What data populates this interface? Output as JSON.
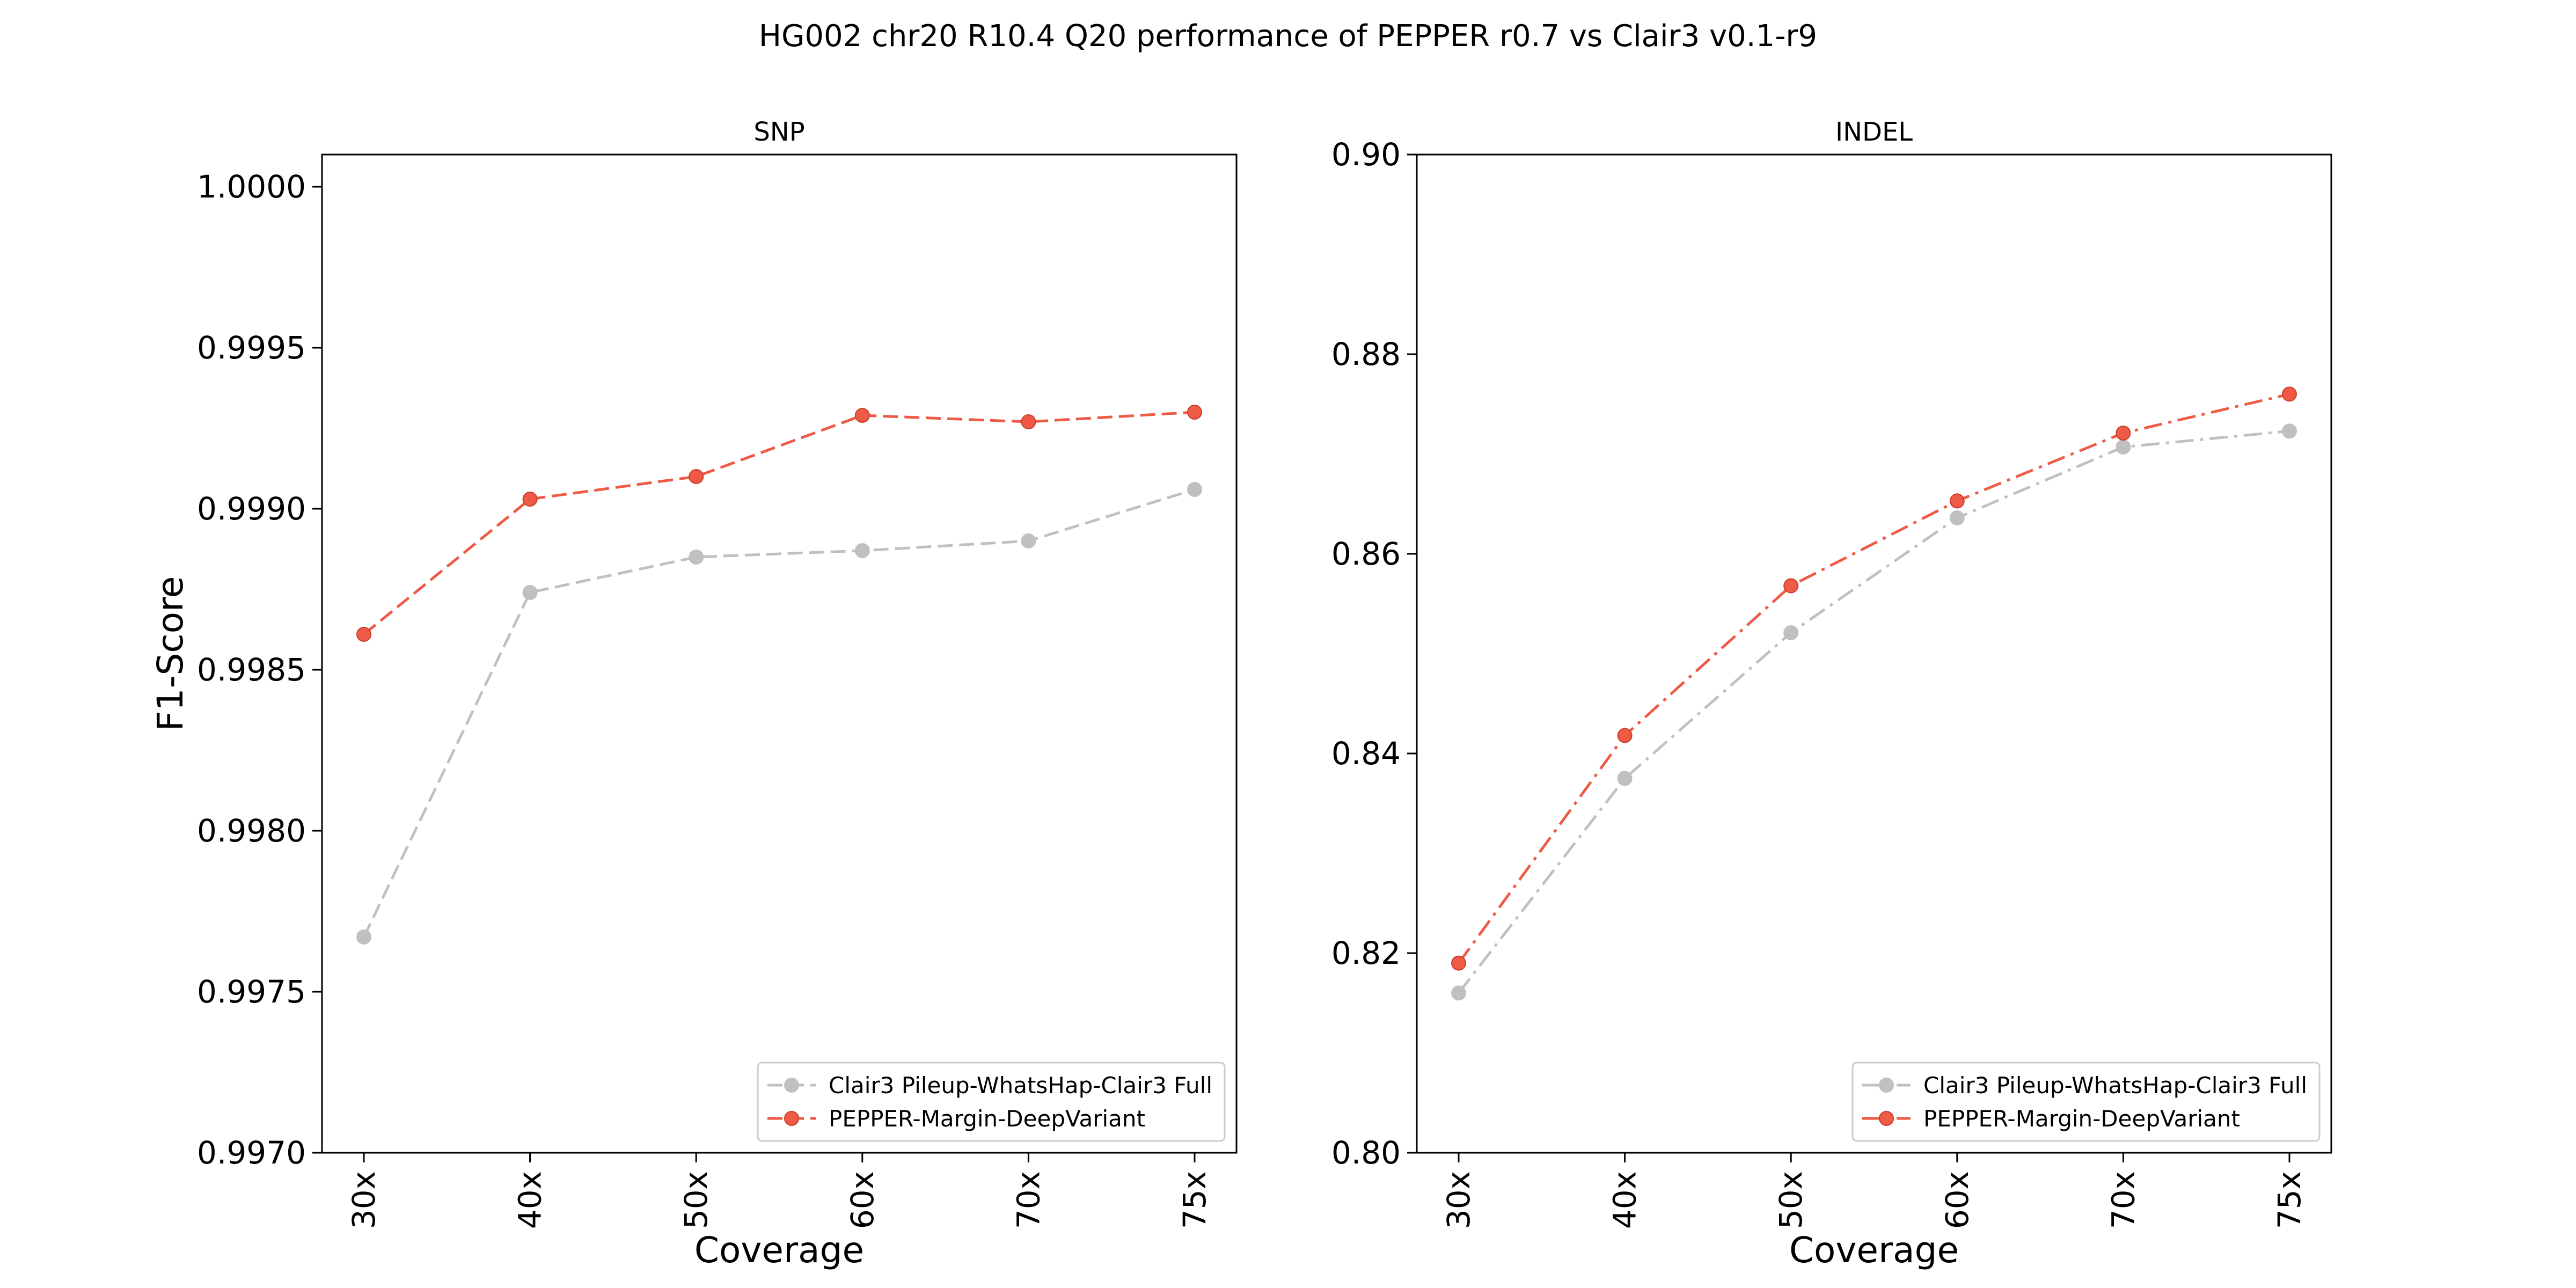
{
  "figure": {
    "suptitle": "HG002 chr20 R10.4 Q20 performance of PEPPER r0.7 vs Clair3 v0.1-r9"
  },
  "colors": {
    "clair3": "#c0c0c0",
    "pepper": "#ee5a45",
    "pepper_edge": "#c8402f",
    "axis": "#000000"
  },
  "chart_data": [
    {
      "type": "line",
      "title": "SNP",
      "xlabel": "Coverage",
      "ylabel": "F1-Score",
      "categories": [
        "30x",
        "40x",
        "50x",
        "60x",
        "70x",
        "75x"
      ],
      "ylim": [
        0.997,
        1.0001
      ],
      "yticks": [
        0.997,
        0.9975,
        0.998,
        0.9985,
        0.999,
        0.9995,
        1.0
      ],
      "ytick_labels": [
        "0.9970",
        "0.9975",
        "0.9980",
        "0.9985",
        "0.9990",
        "0.9995",
        "1.0000"
      ],
      "grid": false,
      "legend_position": "lower right",
      "series": [
        {
          "name": "Clair3 Pileup-WhatsHap-Clair3 Full",
          "color_key": "clair3",
          "linestyle": "dashed",
          "values": [
            0.99767,
            0.99874,
            0.99885,
            0.99887,
            0.9989,
            0.99906
          ]
        },
        {
          "name": "PEPPER-Margin-DeepVariant",
          "color_key": "pepper",
          "linestyle": "dashed",
          "values": [
            0.99861,
            0.99903,
            0.9991,
            0.99929,
            0.99927,
            0.9993
          ]
        }
      ]
    },
    {
      "type": "line",
      "title": "INDEL",
      "xlabel": "Coverage",
      "ylabel": "",
      "categories": [
        "30x",
        "40x",
        "50x",
        "60x",
        "70x",
        "75x"
      ],
      "ylim": [
        0.8,
        0.9
      ],
      "yticks": [
        0.8,
        0.82,
        0.84,
        0.86,
        0.88,
        0.9
      ],
      "ytick_labels": [
        "0.80",
        "0.82",
        "0.84",
        "0.86",
        "0.88",
        "0.90"
      ],
      "grid": false,
      "legend_position": "lower right",
      "series": [
        {
          "name": "Clair3 Pileup-WhatsHap-Clair3 Full",
          "color_key": "clair3",
          "linestyle": "dashdot",
          "values": [
            0.816,
            0.8375,
            0.8521,
            0.8636,
            0.8707,
            0.8723
          ]
        },
        {
          "name": "PEPPER-Margin-DeepVariant",
          "color_key": "pepper",
          "linestyle": "dashdot",
          "values": [
            0.819,
            0.8418,
            0.8568,
            0.8653,
            0.8721,
            0.876
          ]
        }
      ]
    }
  ]
}
